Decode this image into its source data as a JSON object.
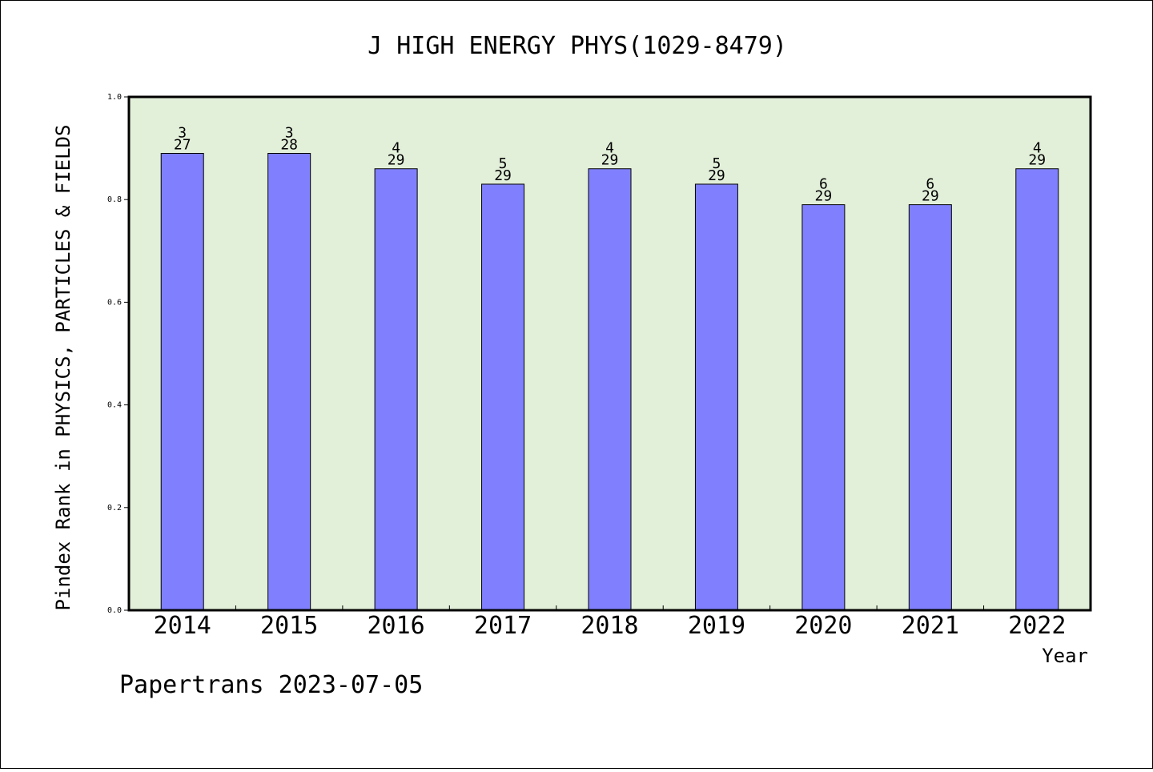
{
  "chart_data": {
    "type": "bar",
    "title": "J HIGH ENERGY PHYS(1029-8479)",
    "xlabel": "Year",
    "ylabel": "Pindex Rank in PHYSICS, PARTICLES & FIELDS",
    "ylim": [
      0,
      1.0
    ],
    "yticks": [
      "0.0",
      "0.2",
      "0.4",
      "0.6",
      "0.8",
      "1.0"
    ],
    "categories": [
      "2014",
      "2015",
      "2016",
      "2017",
      "2018",
      "2019",
      "2020",
      "2021",
      "2022"
    ],
    "values": [
      0.89,
      0.89,
      0.86,
      0.83,
      0.86,
      0.83,
      0.79,
      0.79,
      0.86
    ],
    "rank": [
      "3",
      "3",
      "4",
      "5",
      "4",
      "5",
      "6",
      "6",
      "4"
    ],
    "total": [
      "27",
      "28",
      "29",
      "29",
      "29",
      "29",
      "29",
      "29",
      "29"
    ],
    "grid": false,
    "plot_background": "#e2efd9",
    "bar_color": "#8080ff"
  },
  "footer": "Papertrans 2023-07-05"
}
